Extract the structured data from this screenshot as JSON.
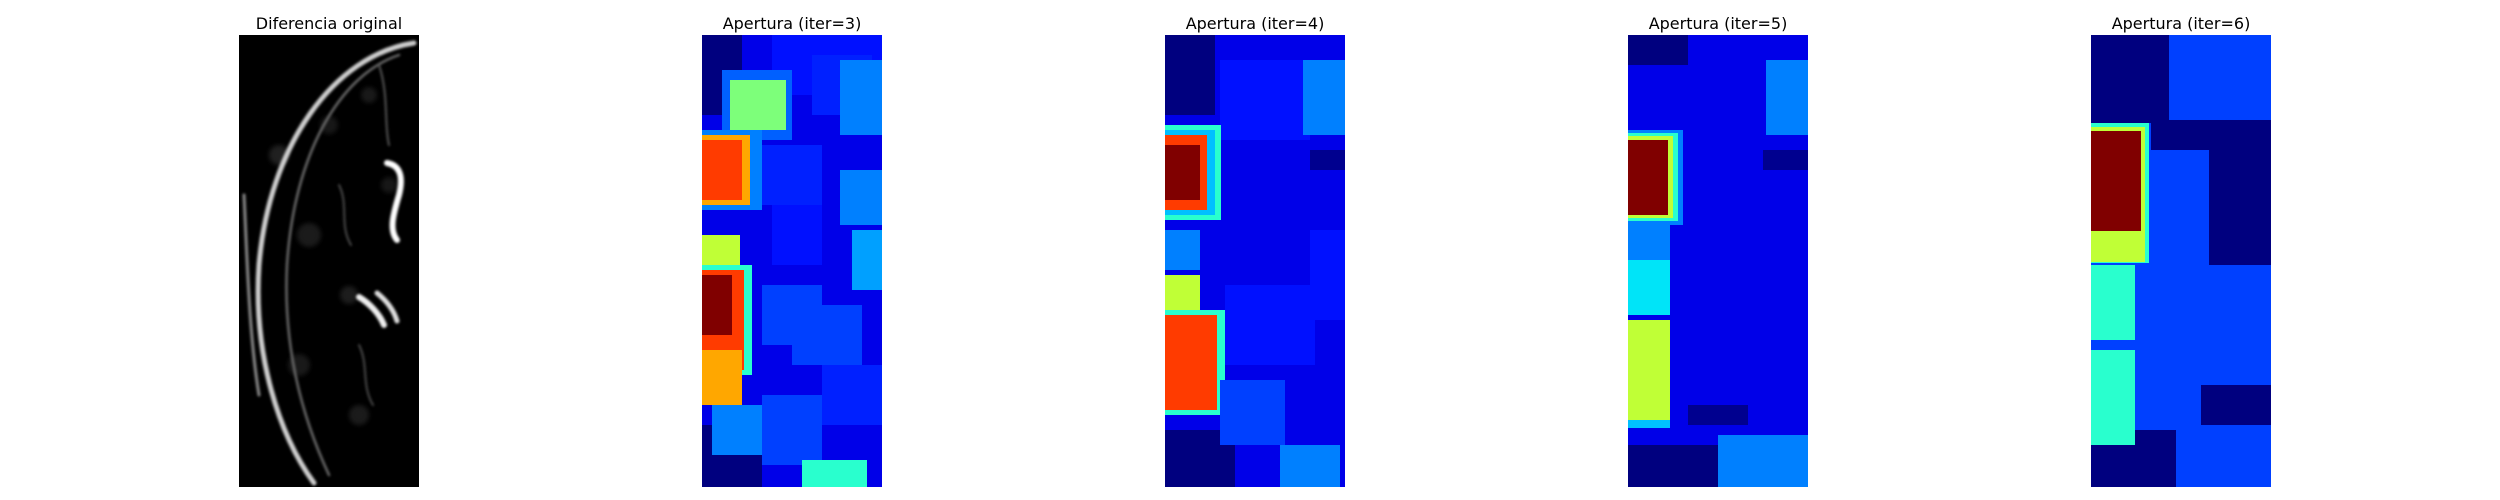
{
  "figure": {
    "colormap_original": "gray",
    "colormap_openings": "jet",
    "panels": [
      {
        "title": "Diferencia original"
      },
      {
        "title": "Apertura (iter=3)"
      },
      {
        "title": "Apertura (iter=4)"
      },
      {
        "title": "Apertura (iter=5)"
      },
      {
        "title": "Apertura (iter=6)"
      }
    ]
  },
  "colors": {
    "background": "#ffffff",
    "dark_navy": "#00007f",
    "blue": "#0000ff",
    "mid_blue": "#0040ff",
    "light_blue": "#0080ff",
    "cyan_blue": "#00c0ff",
    "cyan": "#00e4f8",
    "aqua": "#29ffce",
    "yellow_green": "#c0ff36",
    "light_green": "#7dff7a",
    "yellow": "#ffea00",
    "orange": "#ffa700",
    "red_orange": "#ff3b00",
    "red": "#ed0400",
    "dark_red": "#800000"
  }
}
